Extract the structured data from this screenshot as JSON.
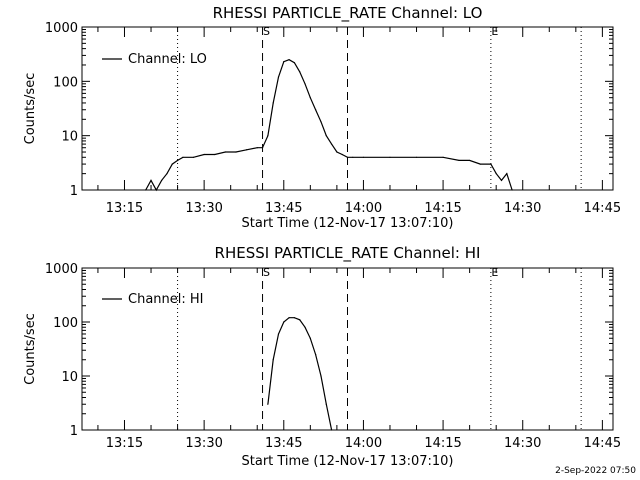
{
  "footer": {
    "timestamp": "2-Sep-2022 07:50"
  },
  "markers": {
    "start": "S",
    "end": "E"
  },
  "colors": {
    "background": "#ffffff",
    "ink": "#000000"
  },
  "chart_data": [
    {
      "type": "line",
      "title": "RHESSI PARTICLE_RATE Channel: LO",
      "xlabel": "Start Time (12-Nov-17 13:07:10)",
      "ylabel": "Counts/sec",
      "yscale": "log",
      "ylim": [
        1,
        1000
      ],
      "xlim": [
        "13:07",
        "14:47"
      ],
      "x_ticks": [
        "13:15",
        "13:30",
        "13:45",
        "14:00",
        "14:15",
        "14:30",
        "14:45"
      ],
      "y_ticks": [
        "1",
        "10",
        "100",
        "1000"
      ],
      "legend": "top-left",
      "dotted_lines_x": [
        "13:25",
        "14:24",
        "14:41"
      ],
      "dashed_lines_x": [
        "13:41",
        "13:57"
      ],
      "series": [
        {
          "name": "Channel: LO",
          "x": [
            "13:19",
            "13:20",
            "13:21",
            "13:22",
            "13:23",
            "13:24",
            "13:25",
            "13:26",
            "13:28",
            "13:30",
            "13:32",
            "13:34",
            "13:36",
            "13:38",
            "13:40",
            "13:41",
            "13:42",
            "13:43",
            "13:44",
            "13:45",
            "13:46",
            "13:47",
            "13:48",
            "13:49",
            "13:50",
            "13:51",
            "13:52",
            "13:53",
            "13:54",
            "13:55",
            "13:56",
            "13:57",
            "13:58",
            "14:00",
            "14:05",
            "14:10",
            "14:15",
            "14:18",
            "14:20",
            "14:22",
            "14:24",
            "14:25",
            "14:26",
            "14:27",
            "14:28"
          ],
          "y": [
            1,
            1.5,
            1,
            1.5,
            2,
            3,
            3.5,
            4,
            4,
            4.5,
            4.5,
            5,
            5,
            5.5,
            6,
            6,
            10,
            40,
            120,
            230,
            250,
            220,
            150,
            90,
            50,
            30,
            18,
            10,
            7,
            5,
            4.5,
            4,
            4,
            4,
            4,
            4,
            4,
            3.5,
            3.5,
            3,
            3,
            2,
            1.5,
            2,
            1
          ]
        }
      ]
    },
    {
      "type": "line",
      "title": "RHESSI PARTICLE_RATE Channel: HI",
      "xlabel": "Start Time (12-Nov-17 13:07:10)",
      "ylabel": "Counts/sec",
      "yscale": "log",
      "ylim": [
        1,
        1000
      ],
      "xlim": [
        "13:07",
        "14:47"
      ],
      "x_ticks": [
        "13:15",
        "13:30",
        "13:45",
        "14:00",
        "14:15",
        "14:30",
        "14:45"
      ],
      "y_ticks": [
        "1",
        "10",
        "100",
        "1000"
      ],
      "legend": "top-left",
      "dotted_lines_x": [
        "13:25",
        "14:24",
        "14:41"
      ],
      "dashed_lines_x": [
        "13:41",
        "13:57"
      ],
      "series": [
        {
          "name": "Channel: HI",
          "x": [
            "13:42",
            "13:43",
            "13:44",
            "13:45",
            "13:46",
            "13:47",
            "13:48",
            "13:49",
            "13:50",
            "13:51",
            "13:52",
            "13:53",
            "13:54"
          ],
          "y": [
            3,
            20,
            60,
            100,
            120,
            120,
            110,
            80,
            50,
            25,
            10,
            3,
            1
          ]
        }
      ]
    }
  ]
}
